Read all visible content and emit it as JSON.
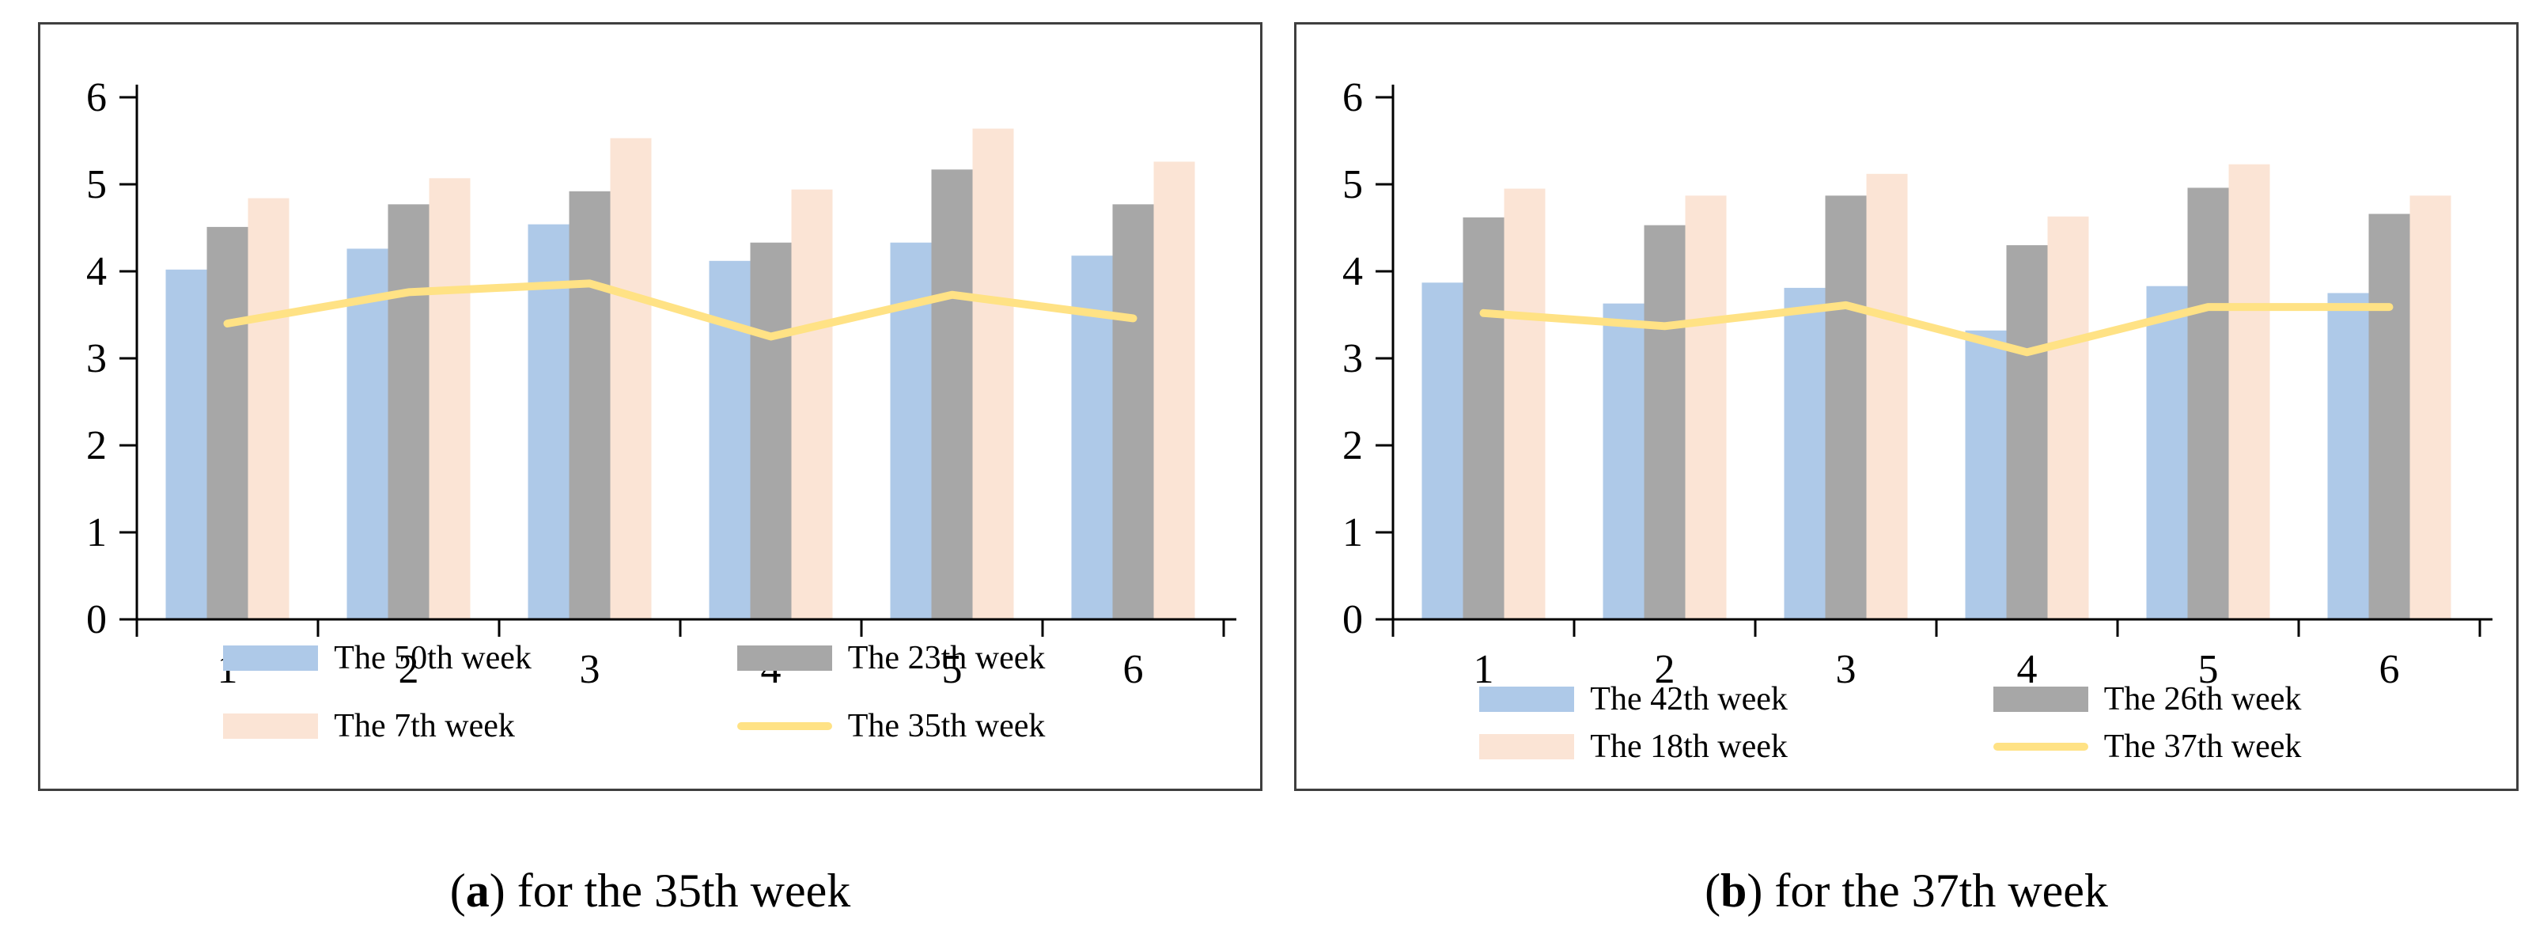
{
  "colors": {
    "blue": "#AEC9E8",
    "gray": "#A7A7A7",
    "peach": "#FBE4D5",
    "yellow": "#FFE285",
    "axis": "#000000",
    "panel_border": "#3f3f3f"
  },
  "figure": {
    "captions": [
      {
        "prefix": "(",
        "bold": "a",
        "suffix": ") for the 35th week"
      },
      {
        "prefix": "(",
        "bold": "b",
        "suffix": ") for the 37th week"
      }
    ]
  },
  "chart_data": [
    {
      "type": "bar",
      "subtype": "grouped-bars-with-line-overlay",
      "title": "",
      "xlabel": "",
      "ylabel": "",
      "categories": [
        "1",
        "2",
        "3",
        "4",
        "5",
        "6"
      ],
      "ylim": [
        0,
        6
      ],
      "yticks": [
        0,
        1,
        2,
        3,
        4,
        5,
        6
      ],
      "grid": false,
      "legend_position": "bottom",
      "series": [
        {
          "name": "The 50th week",
          "type": "bar",
          "color_key": "blue",
          "values": [
            4.02,
            4.26,
            4.54,
            4.12,
            4.33,
            4.18
          ]
        },
        {
          "name": "The 23th week",
          "type": "bar",
          "color_key": "gray",
          "values": [
            4.51,
            4.77,
            4.92,
            4.33,
            5.17,
            4.77
          ]
        },
        {
          "name": "The 7th week",
          "type": "bar",
          "color_key": "peach",
          "values": [
            4.84,
            5.07,
            5.53,
            4.94,
            5.64,
            5.26
          ]
        },
        {
          "name": "The 35th week",
          "type": "line",
          "color_key": "yellow",
          "values": [
            3.4,
            3.76,
            3.86,
            3.25,
            3.73,
            3.46
          ]
        }
      ]
    },
    {
      "type": "bar",
      "subtype": "grouped-bars-with-line-overlay",
      "title": "",
      "xlabel": "",
      "ylabel": "",
      "categories": [
        "1",
        "2",
        "3",
        "4",
        "5",
        "6"
      ],
      "ylim": [
        0,
        6
      ],
      "yticks": [
        0,
        1,
        2,
        3,
        4,
        5,
        6
      ],
      "grid": false,
      "legend_position": "bottom",
      "series": [
        {
          "name": "The 42th week",
          "type": "bar",
          "color_key": "blue",
          "values": [
            3.87,
            3.63,
            3.81,
            3.32,
            3.83,
            3.75
          ]
        },
        {
          "name": "The 26th week",
          "type": "bar",
          "color_key": "gray",
          "values": [
            4.62,
            4.53,
            4.87,
            4.3,
            4.96,
            4.66
          ]
        },
        {
          "name": "The 18th week",
          "type": "bar",
          "color_key": "peach",
          "values": [
            4.95,
            4.87,
            5.12,
            4.63,
            5.23,
            4.87
          ]
        },
        {
          "name": "The 37th week",
          "type": "line",
          "color_key": "yellow",
          "values": [
            3.52,
            3.37,
            3.61,
            3.07,
            3.59,
            3.59
          ]
        }
      ]
    }
  ]
}
